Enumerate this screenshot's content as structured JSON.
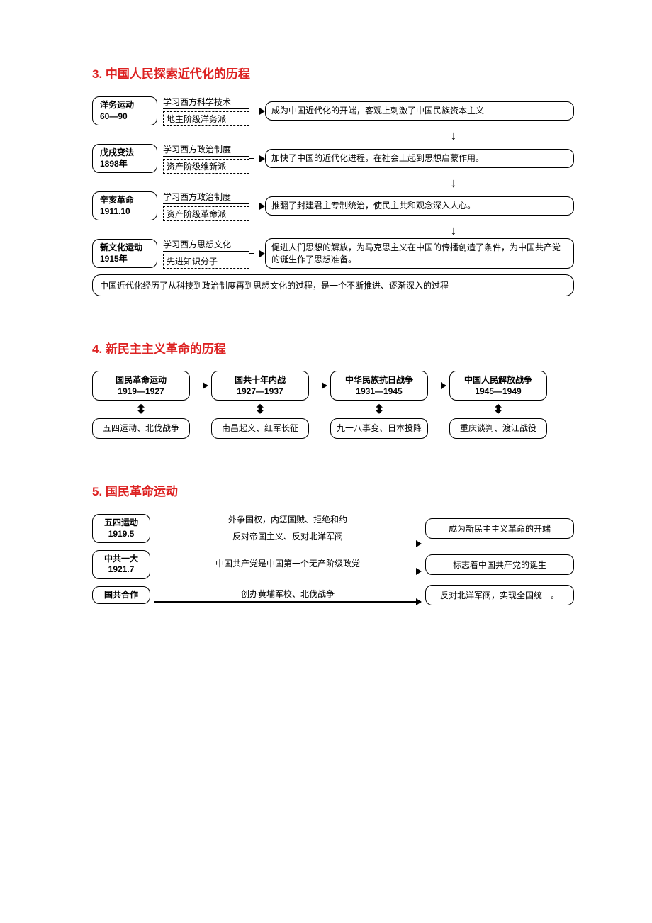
{
  "section3": {
    "title": "3. 中国人民探索近代化的历程",
    "rows": [
      {
        "name": "洋务运动",
        "date": "60—90",
        "mid_top": "学习西方科学技术",
        "mid_bot": "地主阶级洋务派",
        "right": "成为中国近代化的开端，客观上刺激了中国民族资本主义"
      },
      {
        "name": "戊戌变法",
        "date": "1898年",
        "mid_top": "学习西方政治制度",
        "mid_bot": "资产阶级维新派",
        "right": "加快了中国的近代化进程，在社会上起到思想启蒙作用。"
      },
      {
        "name": "辛亥革命",
        "date": "1911.10",
        "mid_top": "学习西方政治制度",
        "mid_bot": "资产阶级革命派",
        "right": "推翻了封建君主专制统治，使民主共和观念深入人心。"
      },
      {
        "name": "新文化运动",
        "date": "1915年",
        "mid_top": "学习西方思想文化",
        "mid_bot": "先进知识分子",
        "right": "促进人们思想的解放，为马克思主义在中国的传播创造了条件，为中国共产党的诞生作了思想准备。"
      }
    ],
    "summary": "中国近代化经历了从科技到政治制度再到思想文化的过程，是一个不断推进、逐渐深入的过程"
  },
  "section4": {
    "title": "4. 新民主主义革命的历程",
    "top": [
      {
        "t": "国民革命运动",
        "d": "1919—1927"
      },
      {
        "t": "国共十年内战",
        "d": "1927—1937"
      },
      {
        "t": "中华民族抗日战争",
        "d": "1931—1945"
      },
      {
        "t": "中国人民解放战争",
        "d": "1945—1949"
      }
    ],
    "bot": [
      "五四运动、北伐战争",
      "南昌起义、红军长征",
      "九一八事变、日本投降",
      "重庆谈判、渡江战役"
    ]
  },
  "section5": {
    "title": "5. 国民革命运动",
    "rows": [
      {
        "left_name": "五四运动",
        "left_date": "1919.5",
        "double": true,
        "label1": "外争国权，内惩国贼、拒绝和约",
        "label2": "反对帝国主义、反对北洋军阀",
        "right": "成为新民主主义革命的开端"
      },
      {
        "left_name": "中共一大",
        "left_date": "1921.7",
        "double": false,
        "label1": "中国共产党是中国第一个无产阶级政党",
        "right": "标志着中国共产党的诞生"
      },
      {
        "left_name": "国共合作",
        "left_date": "",
        "double": false,
        "label1": "创办黄埔军校、北伐战争",
        "right": "反对北洋军阀，实现全国统一。"
      }
    ]
  }
}
